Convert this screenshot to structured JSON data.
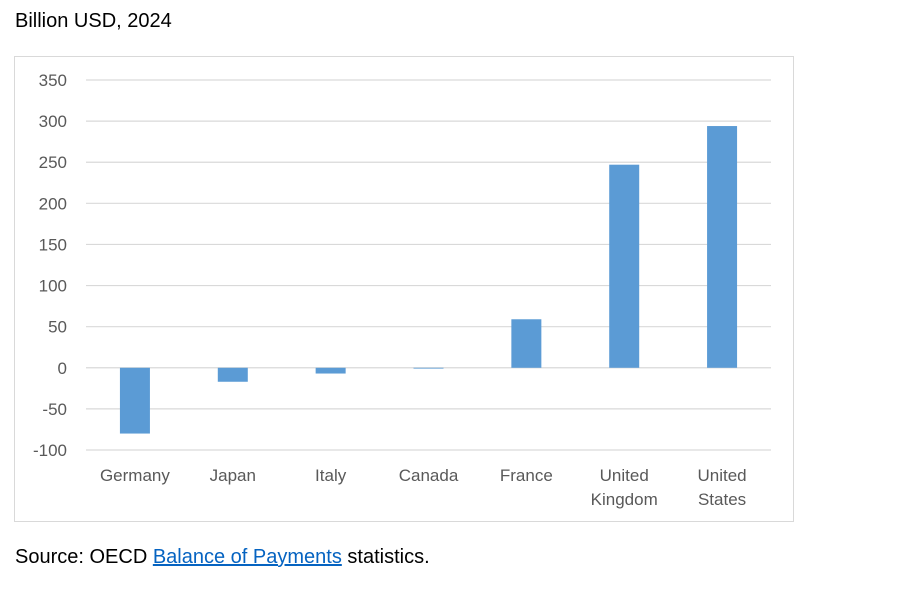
{
  "subtitle": "Billion USD, 2024",
  "source": {
    "prefix": "Source: OECD ",
    "link_text": "Balance of Payments",
    "suffix": " statistics."
  },
  "colors": {
    "bar": "#5b9bd5",
    "grid": "#d9d9d9",
    "tick_text": "#595959",
    "link": "#0563c1"
  },
  "chart_data": {
    "type": "bar",
    "title": "",
    "xlabel": "",
    "ylabel": "",
    "categories": [
      [
        "Germany"
      ],
      [
        "Japan"
      ],
      [
        "Italy"
      ],
      [
        "Canada"
      ],
      [
        "France"
      ],
      [
        "United",
        "Kingdom"
      ],
      [
        "United",
        "States"
      ]
    ],
    "values": [
      -80,
      -17,
      -7,
      -1,
      59,
      247,
      294
    ],
    "ylim": [
      -100,
      350
    ],
    "yticks": [
      350,
      300,
      250,
      200,
      150,
      100,
      50,
      0,
      -50,
      -100
    ],
    "grid": true,
    "legend": "none"
  }
}
